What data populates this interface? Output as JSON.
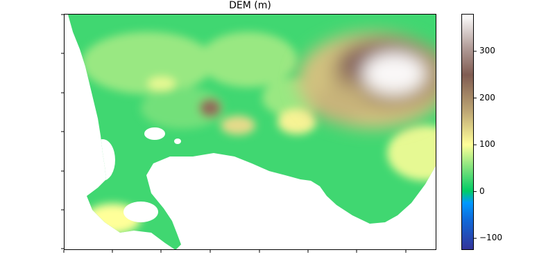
{
  "chart_data": {
    "type": "heatmap",
    "title": "DEM (m)",
    "xlabel": "",
    "ylabel": "",
    "x_tick_labels": [
      "",
      "",
      "",
      "",
      "",
      "",
      "",
      ""
    ],
    "y_tick_labels": [
      "",
      "",
      "",
      "",
      "",
      "",
      ""
    ],
    "colorbar": {
      "colormap": "terrain",
      "vmin": -125,
      "vmax": 380,
      "ticks": [
        -100,
        0,
        100,
        200,
        300
      ],
      "tick_labels": [
        "−100",
        "0",
        "100",
        "200",
        "300"
      ],
      "stops": [
        {
          "value": -125,
          "color": "#333399"
        },
        {
          "value": -60,
          "color": "#0f6bdb"
        },
        {
          "value": -25,
          "color": "#0099ff"
        },
        {
          "value": 0,
          "color": "#00cc66"
        },
        {
          "value": 40,
          "color": "#66dd77"
        },
        {
          "value": 100,
          "color": "#ffff99"
        },
        {
          "value": 170,
          "color": "#bfa875"
        },
        {
          "value": 250,
          "color": "#805c52"
        },
        {
          "value": 310,
          "color": "#b39e9a"
        },
        {
          "value": 380,
          "color": "#ffffff"
        }
      ]
    },
    "grid": false,
    "regions": {
      "land_base": 25,
      "inland_plain": 60,
      "northeast_mountain": 375,
      "foothills": 190,
      "central_ridge": 230,
      "valley_mounds": 90,
      "southern_peninsula": 100,
      "bay": "no data",
      "west_coast_sea": "no data"
    }
  }
}
